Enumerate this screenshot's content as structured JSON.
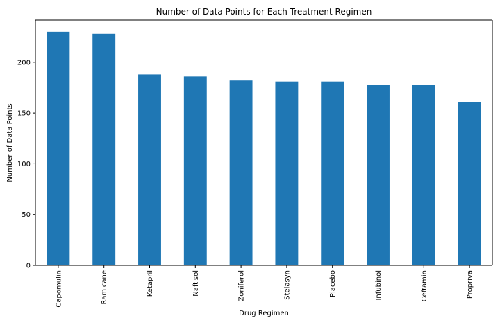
{
  "chart_data": {
    "type": "bar",
    "title": "Number of Data Points for Each Treatment Regimen",
    "xlabel": "Drug Regimen",
    "ylabel": "Number of Data Points",
    "categories": [
      "Capomulin",
      "Ramicane",
      "Ketapril",
      "Naftisol",
      "Zoniferol",
      "Stelasyn",
      "Placebo",
      "Infubinol",
      "Ceftamin",
      "Propriva"
    ],
    "values": [
      230,
      228,
      188,
      186,
      182,
      181,
      181,
      178,
      178,
      161
    ],
    "ylim": [
      0,
      241.5
    ],
    "yticks": [
      0,
      50,
      100,
      150,
      200
    ],
    "grid": false,
    "legend": "none",
    "bar_color": "#1f77b4"
  }
}
